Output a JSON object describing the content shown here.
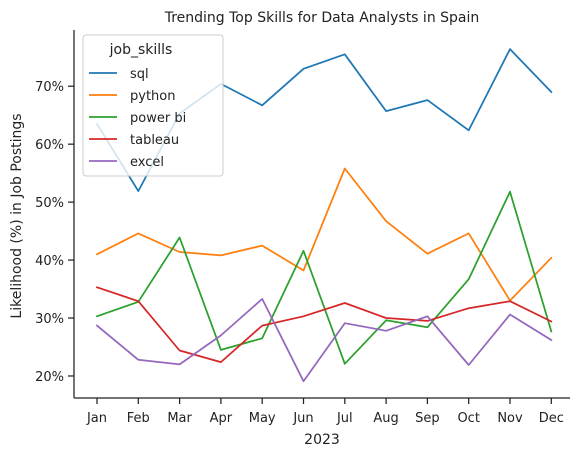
{
  "chart_data": {
    "type": "line",
    "title": "Trending Top Skills for Data Analysts in Spain",
    "xlabel": "2023",
    "ylabel": "Likelihood (%) in Job Postings",
    "categories": [
      "Jan",
      "Feb",
      "Mar",
      "Apr",
      "May",
      "Jun",
      "Jul",
      "Aug",
      "Sep",
      "Oct",
      "Nov",
      "Dec"
    ],
    "ylim": [
      16.2,
      79.7
    ],
    "yticks": [
      20,
      30,
      40,
      50,
      60,
      70
    ],
    "ytick_labels": [
      "20%",
      "30%",
      "40%",
      "50%",
      "60%",
      "70%"
    ],
    "grid": false,
    "legend": {
      "title": "job_skills",
      "placement": "top-left"
    },
    "series": [
      {
        "name": "sql",
        "color": "#1f77b4",
        "values": [
          63.5,
          51.9,
          65.3,
          70.4,
          66.7,
          73.0,
          75.5,
          65.7,
          67.6,
          62.4,
          76.4,
          69.0
        ]
      },
      {
        "name": "python",
        "color": "#ff7f0e",
        "values": [
          41.0,
          44.6,
          41.4,
          40.8,
          42.5,
          38.2,
          55.8,
          46.7,
          41.1,
          44.6,
          33.0,
          40.4
        ]
      },
      {
        "name": "power bi",
        "color": "#2ca02c",
        "values": [
          30.3,
          32.8,
          43.9,
          24.5,
          26.5,
          41.6,
          22.1,
          29.6,
          28.4,
          36.7,
          51.8,
          27.7
        ]
      },
      {
        "name": "tableau",
        "color": "#d62728",
        "values": [
          35.3,
          32.9,
          24.4,
          22.4,
          28.7,
          30.3,
          32.6,
          30.0,
          29.5,
          31.7,
          32.9,
          29.4
        ]
      },
      {
        "name": "excel",
        "color": "#9467bd",
        "values": [
          28.7,
          22.8,
          22.0,
          27.0,
          33.3,
          19.1,
          29.1,
          27.8,
          30.3,
          21.9,
          30.6,
          26.2
        ]
      }
    ]
  }
}
